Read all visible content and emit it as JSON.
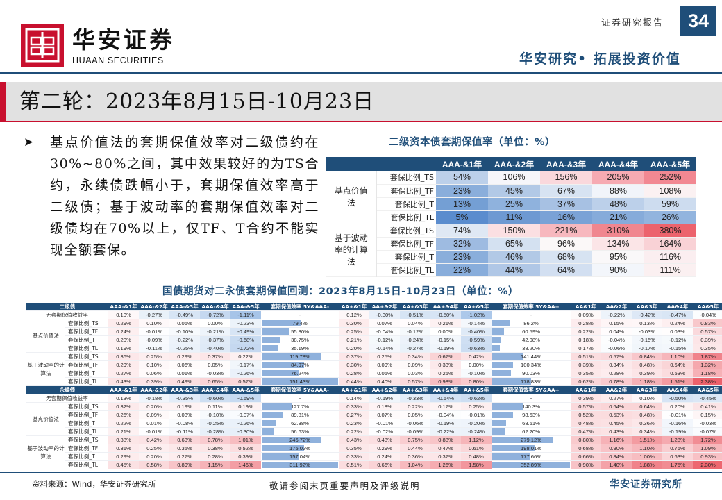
{
  "header": {
    "brand_cn": "华安证券",
    "brand_en": "HUAAN SECURITIES",
    "report_type": "证券研究报告",
    "page_number": "34",
    "slogan": "华安研究• 拓展投资价值"
  },
  "title": "第二轮：2023年8月15日-10月23日",
  "bullet": "基点价值法的套期保值效率对二级债约在30%~80%之间，其中效果较好的为TS合约，永续债跌幅小于，套期保值效率高于二级债；基于波动率的套期保值效率对二级债均在70%以上，仅TF、T合约不能实现全额套保。",
  "table1": {
    "title": "二级资本债套期保值率（单位：%）",
    "columns": [
      "AAA-&1年",
      "AAA-&2年",
      "AAA-&3年",
      "AAA-&4年",
      "AAA-&5年"
    ],
    "groups": [
      {
        "name": "基点价值法",
        "rows": [
          {
            "label": "套保比例_TS",
            "values": [
              "54%",
              "106%",
              "156%",
              "205%",
              "252%"
            ],
            "colors": [
              "#bcd0ea",
              "#f6f6fa",
              "#fad8dc",
              "#f6aab2",
              "#f28892"
            ]
          },
          {
            "label": "套保比例_TF",
            "values": [
              "23%",
              "45%",
              "67%",
              "88%",
              "108%"
            ],
            "colors": [
              "#8aaedb",
              "#b2c9e6",
              "#d7e3f2",
              "#f1f4fa",
              "#fbf1f2"
            ]
          },
          {
            "label": "套保比例_T",
            "values": [
              "13%",
              "25%",
              "37%",
              "48%",
              "59%"
            ],
            "colors": [
              "#749fd4",
              "#8fb2dd",
              "#a7c1e3",
              "#bcd0ea",
              "#cddcef"
            ]
          },
          {
            "label": "套保比例_TL",
            "values": [
              "5%",
              "11%",
              "16%",
              "21%",
              "26%"
            ],
            "colors": [
              "#5a8cce",
              "#6e99d2",
              "#7aa2d6",
              "#86abda",
              "#92b4de"
            ]
          }
        ]
      },
      {
        "name": "基于波动率的计算法",
        "rows": [
          {
            "label": "套保比例_TS",
            "values": [
              "74%",
              "150%",
              "221%",
              "310%",
              "380%"
            ],
            "colors": [
              "#dfe8f4",
              "#fbdfe2",
              "#f7b8be",
              "#f0868f",
              "#ec636d"
            ]
          },
          {
            "label": "套保比例_TF",
            "values": [
              "32%",
              "65%",
              "96%",
              "134%",
              "164%"
            ],
            "colors": [
              "#9ebbe1",
              "#d4e1f1",
              "#fbf8f8",
              "#fbe5e7",
              "#f9d2d6"
            ]
          },
          {
            "label": "套保比例_T",
            "values": [
              "23%",
              "46%",
              "68%",
              "95%",
              "116%"
            ],
            "colors": [
              "#8aaedb",
              "#b2c9e6",
              "#d7e3f2",
              "#faf8f9",
              "#fbeef0"
            ]
          },
          {
            "label": "套保比例_TL",
            "values": [
              "22%",
              "44%",
              "64%",
              "90%",
              "111%"
            ],
            "colors": [
              "#88addb",
              "#b0c7e6",
              "#d2dff1",
              "#f3f6fb",
              "#fbf0f1"
            ]
          }
        ]
      }
    ]
  },
  "table2": {
    "title": "国债期货对二永债套期保值回测：2023年8月15日-10月23日（单位：%）",
    "blocks": [
      {
        "header": [
          "二级债",
          "AAA-&1年",
          "AAA-&2年",
          "AAA-&3年",
          "AAA-&4年",
          "AAA-&5年",
          "套期保值效率 5Y&AAA-",
          "AA+&1年",
          "AA+&2年",
          "AA+&3年",
          "AA+&4年",
          "AA+&5年",
          "套期保值效率 5Y&AA+",
          "AA&1年",
          "AA&2年",
          "AA&3年",
          "AA&4年",
          "AA&5年"
        ],
        "base": {
          "label": "无套期保值收益率",
          "a": [
            "0.10%",
            "-0.27%",
            "-0.49%",
            "-0.72%",
            "-1.11%"
          ],
          "e1": "-",
          "b": [
            "0.12%",
            "-0.30%",
            "-0.51%",
            "-0.50%",
            "-1.02%"
          ],
          "e2": "-",
          "c": [
            "0.09%",
            "-0.22%",
            "-0.42%",
            "-0.47%",
            "-0.04%"
          ]
        },
        "groups": [
          {
            "name": "基点价值法",
            "rows": [
              {
                "label": "套保比例_TS",
                "a": [
                  "0.29%",
                  "0.10%",
                  "0.06%",
                  "0.00%",
                  "-0.23%"
                ],
                "e1": "79.4%",
                "f1": 0.52,
                "b": [
                  "0.30%",
                  "0.07%",
                  "0.04%",
                  "0.21%",
                  "-0.14%"
                ],
                "e2": "86.2%",
                "f2": 0.24,
                "c": [
                  "0.28%",
                  "0.15%",
                  "0.13%",
                  "0.24%",
                  "0.83%"
                ]
              },
              {
                "label": "套保比例_TF",
                "a": [
                  "0.24%",
                  "-0.01%",
                  "-0.10%",
                  "-0.21%",
                  "-0.49%"
                ],
                "e1": "55.80%",
                "f1": 0.37,
                "b": [
                  "0.25%",
                  "-0.04%",
                  "-0.12%",
                  "0.00%",
                  "-0.40%"
                ],
                "e2": "60.59%",
                "f2": 0.17,
                "c": [
                  "0.22%",
                  "0.04%",
                  "-0.03%",
                  "0.03%",
                  "0.57%"
                ]
              },
              {
                "label": "套保比例_T",
                "a": [
                  "0.20%",
                  "-0.09%",
                  "-0.22%",
                  "-0.37%",
                  "-0.68%"
                ],
                "e1": "38.75%",
                "f1": 0.26,
                "b": [
                  "0.21%",
                  "-0.12%",
                  "-0.24%",
                  "-0.15%",
                  "-0.59%"
                ],
                "e2": "42.08%",
                "f2": 0.12,
                "c": [
                  "0.18%",
                  "-0.04%",
                  "-0.15%",
                  "-0.12%",
                  "0.39%"
                ]
              },
              {
                "label": "套保比例_TL",
                "a": [
                  "0.19%",
                  "-0.11%",
                  "-0.25%",
                  "-0.40%",
                  "-0.72%"
                ],
                "e1": "35.19%",
                "f1": 0.23,
                "b": [
                  "0.20%",
                  "-0.14%",
                  "-0.27%",
                  "-0.19%",
                  "-0.63%"
                ],
                "e2": "38.20%",
                "f2": 0.11,
                "c": [
                  "0.17%",
                  "-0.06%",
                  "-0.17%",
                  "-0.15%",
                  "0.35%"
                ]
              }
            ]
          },
          {
            "name": "基于波动率的计算法",
            "rows": [
              {
                "label": "套保比例_TS",
                "a": [
                  "0.36%",
                  "0.25%",
                  "0.29%",
                  "0.37%",
                  "0.22%"
                ],
                "e1": "119.78%",
                "f1": 0.79,
                "b": [
                  "0.37%",
                  "0.25%",
                  "0.34%",
                  "0.67%",
                  "0.42%"
                ],
                "e2": "141.44%",
                "f2": 0.4,
                "c": [
                  "0.51%",
                  "0.57%",
                  "0.84%",
                  "1.10%",
                  "1.87%"
                ]
              },
              {
                "label": "套保比例_TF",
                "a": [
                  "0.29%",
                  "0.10%",
                  "0.06%",
                  "0.05%",
                  "-0.17%"
                ],
                "e1": "84.97%",
                "f1": 0.56,
                "b": [
                  "0.30%",
                  "0.09%",
                  "0.09%",
                  "0.33%",
                  "0.00%"
                ],
                "e2": "100.34%",
                "f2": 0.28,
                "c": [
                  "0.39%",
                  "0.34%",
                  "0.48%",
                  "0.64%",
                  "1.32%"
                ]
              },
              {
                "label": "套保比例_T",
                "a": [
                  "0.27%",
                  "0.06%",
                  "0.01%",
                  "-0.03%",
                  "-0.26%"
                ],
                "e1": "76.24%",
                "f1": 0.5,
                "b": [
                  "0.28%",
                  "0.05%",
                  "0.03%",
                  "0.25%",
                  "-0.10%"
                ],
                "e2": "90.03%",
                "f2": 0.25,
                "c": [
                  "0.35%",
                  "0.28%",
                  "0.39%",
                  "0.53%",
                  "1.18%"
                ]
              },
              {
                "label": "套保比例_TL",
                "a": [
                  "0.43%",
                  "0.39%",
                  "0.49%",
                  "0.65%",
                  "0.57%"
                ],
                "e1": "151.43%",
                "f1": 1.0,
                "b": [
                  "0.44%",
                  "0.40%",
                  "0.57%",
                  "0.98%",
                  "0.80%"
                ],
                "e2": "178.83%",
                "f2": 0.51,
                "c": [
                  "0.62%",
                  "0.78%",
                  "1.18%",
                  "1.51%",
                  "2.38%"
                ]
              }
            ]
          }
        ]
      },
      {
        "header": [
          "永续债",
          "AAA-&1年",
          "AAA-&2年",
          "AAA-&3年",
          "AAA-&4年",
          "AAA-&5年",
          "套期保值效率 5Y&AAA-",
          "AA+&1年",
          "AA+&2年",
          "AA+&3年",
          "AA+&4年",
          "AA+&5年",
          "套期保值效率 5Y&AA+",
          "AA&1年",
          "AA&2年",
          "AA&3年",
          "AA&4年",
          "AA&5年"
        ],
        "base": {
          "label": "无套期保值收益率",
          "a": [
            "0.13%",
            "-0.18%",
            "-0.35%",
            "-0.60%",
            "-0.69%"
          ],
          "e1": "-",
          "b": [
            "0.14%",
            "-0.19%",
            "-0.33%",
            "-0.54%",
            "-0.62%"
          ],
          "e2": "-",
          "c": [
            "0.39%",
            "0.27%",
            "0.10%",
            "-0.50%",
            "-0.45%"
          ]
        },
        "groups": [
          {
            "name": "基点价值法",
            "rows": [
              {
                "label": "套保比例_TS",
                "a": [
                  "0.32%",
                  "0.20%",
                  "0.19%",
                  "0.11%",
                  "0.19%"
                ],
                "e1": "127.7%",
                "f1": 0.41,
                "b": [
                  "0.33%",
                  "0.18%",
                  "0.22%",
                  "0.17%",
                  "0.25%"
                ],
                "e2": "140.3%",
                "f2": 0.4,
                "c": [
                  "0.57%",
                  "0.64%",
                  "0.64%",
                  "0.20%",
                  "0.41%"
                ]
              },
              {
                "label": "套保比例_TF",
                "a": [
                  "0.26%",
                  "0.09%",
                  "0.03%",
                  "-0.10%",
                  "-0.07%"
                ],
                "e1": "89.81%",
                "f1": 0.29,
                "b": [
                  "0.27%",
                  "0.07%",
                  "0.05%",
                  "-0.04%",
                  "-0.01%"
                ],
                "e2": "98.63%",
                "f2": 0.28,
                "c": [
                  "0.52%",
                  "0.53%",
                  "0.48%",
                  "-0.01%",
                  "0.15%"
                ]
              },
              {
                "label": "套保比例_T",
                "a": [
                  "0.22%",
                  "0.01%",
                  "-0.08%",
                  "-0.25%",
                  "-0.26%"
                ],
                "e1": "62.38%",
                "f1": 0.2,
                "b": [
                  "0.23%",
                  "-0.01%",
                  "-0.06%",
                  "-0.19%",
                  "-0.20%"
                ],
                "e2": "68.51%",
                "f2": 0.19,
                "c": [
                  "0.48%",
                  "0.45%",
                  "0.36%",
                  "-0.16%",
                  "-0.03%"
                ]
              },
              {
                "label": "套保比例_TL",
                "a": [
                  "0.21%",
                  "-0.01%",
                  "-0.11%",
                  "-0.28%",
                  "-0.30%"
                ],
                "e1": "56.63%",
                "f1": 0.18,
                "b": [
                  "0.22%",
                  "-0.02%",
                  "-0.09%",
                  "-0.22%",
                  "-0.24%"
                ],
                "e2": "62.20%",
                "f2": 0.18,
                "c": [
                  "0.47%",
                  "0.43%",
                  "0.34%",
                  "-0.19%",
                  "-0.07%"
                ]
              }
            ]
          },
          {
            "name": "基于波动率的计算法",
            "rows": [
              {
                "label": "套保比例_TS",
                "a": [
                  "0.38%",
                  "0.42%",
                  "0.63%",
                  "0.78%",
                  "1.01%"
                ],
                "e1": "246.72%",
                "f1": 0.79,
                "b": [
                  "0.43%",
                  "0.48%",
                  "0.75%",
                  "0.88%",
                  "1.12%"
                ],
                "e2": "279.12%",
                "f2": 0.79,
                "c": [
                  "0.80%",
                  "1.16%",
                  "1.51%",
                  "1.28%",
                  "1.72%"
                ]
              },
              {
                "label": "套保比例_TF",
                "a": [
                  "0.31%",
                  "0.25%",
                  "0.35%",
                  "0.38%",
                  "0.52%"
                ],
                "e1": "175.02%",
                "f1": 0.56,
                "b": [
                  "0.35%",
                  "0.29%",
                  "0.44%",
                  "0.47%",
                  "0.61%"
                ],
                "e2": "198.01%",
                "f2": 0.56,
                "c": [
                  "0.68%",
                  "0.90%",
                  "1.10%",
                  "0.76%",
                  "1.09%"
                ]
              },
              {
                "label": "套保比例_T",
                "a": [
                  "0.29%",
                  "0.20%",
                  "0.27%",
                  "0.28%",
                  "0.39%"
                ],
                "e1": "157.04%",
                "f1": 0.5,
                "b": [
                  "0.33%",
                  "0.24%",
                  "0.36%",
                  "0.37%",
                  "0.48%"
                ],
                "e2": "177.66%",
                "f2": 0.5,
                "c": [
                  "0.66%",
                  "0.84%",
                  "1.00%",
                  "0.63%",
                  "0.93%"
                ]
              },
              {
                "label": "套保比例_TL",
                "a": [
                  "0.45%",
                  "0.58%",
                  "0.89%",
                  "1.15%",
                  "1.46%"
                ],
                "e1": "311.92%",
                "f1": 1.0,
                "b": [
                  "0.51%",
                  "0.66%",
                  "1.04%",
                  "1.26%",
                  "1.58%"
                ],
                "e2": "352.89%",
                "f2": 1.0,
                "c": [
                  "0.90%",
                  "1.40%",
                  "1.88%",
                  "1.75%",
                  "2.30%"
                ]
              }
            ]
          }
        ]
      }
    ]
  },
  "footer": {
    "source": "资料来源：Wind，华安证券研究所",
    "note": "敬请参阅末页重要声明及评级说明",
    "org": "华安证券研究所"
  },
  "colors": {
    "navy": "#1f4e79",
    "brand_red": "#c8102e"
  }
}
